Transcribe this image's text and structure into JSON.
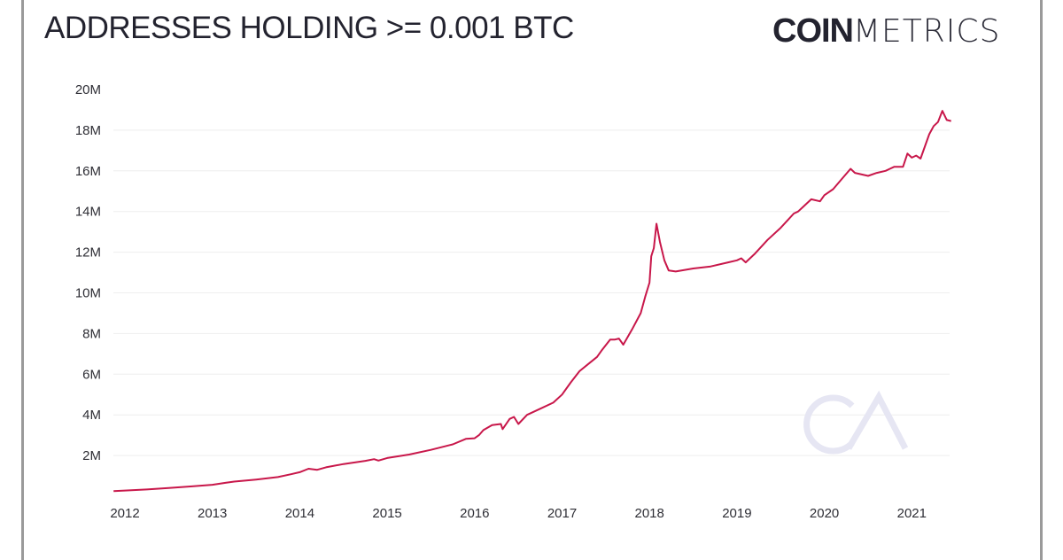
{
  "header": {
    "title": "ADDRESSES HOLDING >= 0.001 BTC",
    "logo_bold": "COIN",
    "logo_light": "METRICS",
    "watermark": "CM"
  },
  "colors": {
    "line": "#c8174a",
    "grid": "#eeeeee",
    "watermark": "#e6e6f3",
    "text": "#23232f",
    "frame": "#9a9a9a"
  },
  "chart_data": {
    "type": "line",
    "title": "ADDRESSES HOLDING >= 0.001 BTC",
    "xlabel": "",
    "ylabel": "",
    "x_unit": "year",
    "y_unit": "addresses (millions)",
    "xlim": [
      2011.87,
      2021.45
    ],
    "ylim": [
      0,
      20
    ],
    "grid": true,
    "legend": "none",
    "y_ticks": [
      {
        "value": 2,
        "label": "2M"
      },
      {
        "value": 4,
        "label": "4M"
      },
      {
        "value": 6,
        "label": "6M"
      },
      {
        "value": 8,
        "label": "8M"
      },
      {
        "value": 10,
        "label": "10M"
      },
      {
        "value": 12,
        "label": "12M"
      },
      {
        "value": 14,
        "label": "14M"
      },
      {
        "value": 16,
        "label": "16M"
      },
      {
        "value": 18,
        "label": "18M"
      },
      {
        "value": 20,
        "label": "20M"
      }
    ],
    "x_ticks": [
      {
        "value": 2012,
        "label": "2012"
      },
      {
        "value": 2013,
        "label": "2013"
      },
      {
        "value": 2014,
        "label": "2014"
      },
      {
        "value": 2015,
        "label": "2015"
      },
      {
        "value": 2016,
        "label": "2016"
      },
      {
        "value": 2017,
        "label": "2017"
      },
      {
        "value": 2018,
        "label": "2018"
      },
      {
        "value": 2019,
        "label": "2019"
      },
      {
        "value": 2020,
        "label": "2020"
      },
      {
        "value": 2021,
        "label": "2021"
      }
    ],
    "series": [
      {
        "name": "Addresses holding >= 0.001 BTC",
        "x": [
          2011.87,
          2012.0,
          2012.25,
          2012.5,
          2012.75,
          2013.0,
          2013.15,
          2013.25,
          2013.5,
          2013.75,
          2013.9,
          2014.0,
          2014.1,
          2014.2,
          2014.3,
          2014.5,
          2014.75,
          2014.85,
          2014.9,
          2015.0,
          2015.25,
          2015.5,
          2015.75,
          2015.9,
          2016.0,
          2016.05,
          2016.1,
          2016.2,
          2016.3,
          2016.32,
          2016.4,
          2016.45,
          2016.5,
          2016.6,
          2016.75,
          2016.9,
          2017.0,
          2017.1,
          2017.2,
          2017.3,
          2017.4,
          2017.45,
          2017.55,
          2017.6,
          2017.65,
          2017.7,
          2017.8,
          2017.9,
          2017.95,
          2018.0,
          2018.02,
          2018.05,
          2018.08,
          2018.12,
          2018.17,
          2018.22,
          2018.3,
          2018.5,
          2018.7,
          2018.9,
          2019.0,
          2019.05,
          2019.1,
          2019.2,
          2019.35,
          2019.5,
          2019.65,
          2019.7,
          2019.75,
          2019.85,
          2019.95,
          2020.0,
          2020.1,
          2020.2,
          2020.3,
          2020.35,
          2020.5,
          2020.6,
          2020.7,
          2020.75,
          2020.8,
          2020.9,
          2020.95,
          2021.0,
          2021.05,
          2021.1,
          2021.2,
          2021.25,
          2021.3,
          2021.35,
          2021.4,
          2021.45
        ],
        "values": [
          0.25,
          0.28,
          0.33,
          0.4,
          0.48,
          0.56,
          0.66,
          0.72,
          0.82,
          0.94,
          1.08,
          1.18,
          1.35,
          1.3,
          1.42,
          1.58,
          1.74,
          1.82,
          1.75,
          1.88,
          2.05,
          2.28,
          2.55,
          2.82,
          2.85,
          3.0,
          3.25,
          3.5,
          3.55,
          3.3,
          3.8,
          3.9,
          3.55,
          4.0,
          4.3,
          4.6,
          5.0,
          5.6,
          6.15,
          6.5,
          6.85,
          7.15,
          7.7,
          7.7,
          7.75,
          7.45,
          8.2,
          9.0,
          9.8,
          10.5,
          11.8,
          12.2,
          13.4,
          12.5,
          11.6,
          11.1,
          11.05,
          11.2,
          11.3,
          11.5,
          11.6,
          11.7,
          11.5,
          11.9,
          12.6,
          13.2,
          13.9,
          14.0,
          14.2,
          14.6,
          14.5,
          14.8,
          15.1,
          15.6,
          16.1,
          15.9,
          15.75,
          15.9,
          16.0,
          16.1,
          16.2,
          16.2,
          16.85,
          16.65,
          16.75,
          16.6,
          17.8,
          18.2,
          18.4,
          18.95,
          18.5,
          18.45
        ]
      }
    ]
  }
}
